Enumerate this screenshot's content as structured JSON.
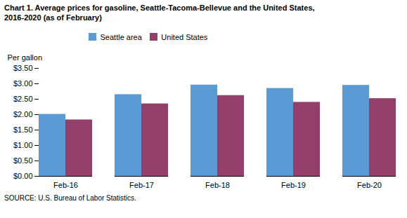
{
  "chart_data": {
    "type": "bar",
    "title": "Chart 1. Average prices for gasoline, Seattle-Tacoma-Bellevue and the United States,",
    "subtitle": "2016-2020  (as of February)",
    "ylabel": "Per gallon",
    "source": "SOURCE: U.S. Bureau of Labor Statistics.",
    "categories": [
      "Feb-16",
      "Feb-17",
      "Feb-18",
      "Feb-19",
      "Feb-20"
    ],
    "series": [
      {
        "name": "Seattle area",
        "color": "#5B9BD5",
        "values": [
          2.01,
          2.65,
          2.96,
          2.85,
          2.95
        ]
      },
      {
        "name": "United States",
        "color": "#943F6A",
        "values": [
          1.83,
          2.35,
          2.62,
          2.4,
          2.52
        ]
      }
    ],
    "ylim": [
      0.0,
      3.5
    ],
    "yticks": [
      {
        "value": 0.0,
        "label": "$0.00"
      },
      {
        "value": 0.5,
        "label": "$0.50"
      },
      {
        "value": 1.0,
        "label": "$1.00"
      },
      {
        "value": 1.5,
        "label": "$1.50"
      },
      {
        "value": 2.0,
        "label": "$2.00"
      },
      {
        "value": 2.5,
        "label": "$2.50"
      },
      {
        "value": 3.0,
        "label": "$3.00"
      },
      {
        "value": 3.5,
        "label": "$3.50"
      }
    ],
    "grid": false,
    "legend": "top"
  }
}
